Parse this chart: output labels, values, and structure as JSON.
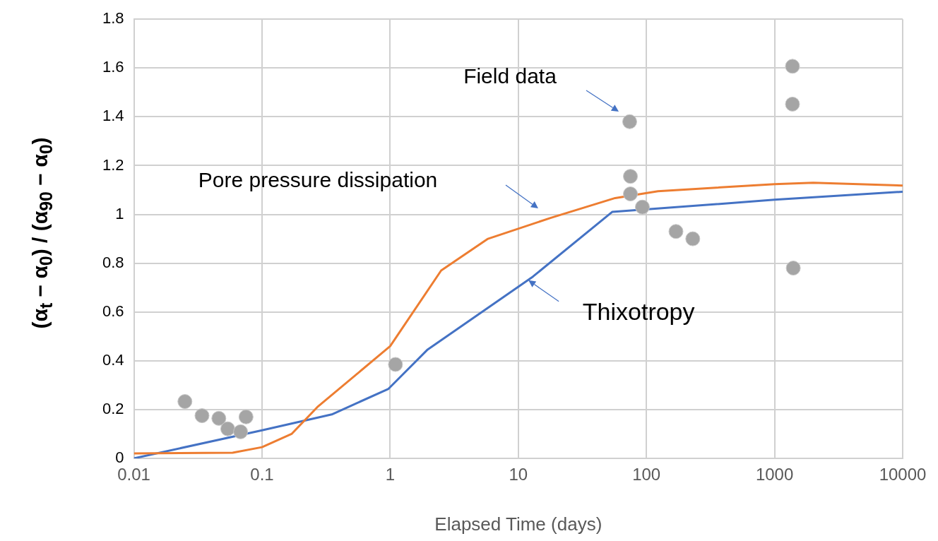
{
  "chart_data": {
    "type": "line",
    "xlabel": "Elapsed Time (days)",
    "ylabel": "(α$_{t}$ − α$_{0}$) / (α$_{90}$ − α$_{0}$)",
    "log": "x",
    "grid": true,
    "legend": false,
    "marker": "none",
    "line_style": "solid",
    "xlim": [
      0.01,
      10000
    ],
    "xticks": [
      0.01,
      0.1,
      1,
      10,
      100,
      1000,
      10000
    ],
    "ylim": [
      0,
      1.8
    ],
    "yticks": [
      0,
      0.2,
      0.4,
      0.6,
      0.8,
      1,
      1.2,
      1.4,
      1.6,
      1.8
    ],
    "series": [
      {
        "color": "#ed7d31",
        "x": [
          0.01,
          0.059,
          0.1,
          0.17,
          0.27,
          1,
          2.5,
          5.8,
          18,
          57,
          123,
          1000,
          2000,
          10000
        ],
        "values": [
          0.02,
          0.023,
          0.046,
          0.1,
          0.21,
          0.46,
          0.77,
          0.9,
          0.986,
          1.067,
          1.095,
          1.124,
          1.13,
          1.118
        ]
      },
      {
        "color": "#4472c4",
        "x": [
          0.01,
          0.1,
          0.35,
          0.97,
          1.96,
          13,
          54,
          1000,
          10000
        ],
        "values": [
          0,
          0.115,
          0.18,
          0.285,
          0.446,
          0.745,
          1.01,
          1.06,
          1.093
        ]
      },
      {
        "type": "scatter",
        "color": "#a5a5a5",
        "marker": "circle",
        "x": [
          0.025,
          0.034,
          0.046,
          0.054,
          0.068,
          0.075,
          1.1,
          74,
          75,
          75,
          93,
          170,
          230,
          1380,
          1380,
          1400
        ],
        "values": [
          0.233,
          0.175,
          0.164,
          0.121,
          0.109,
          0.17,
          0.385,
          1.38,
          1.156,
          1.084,
          1.03,
          0.93,
          0.9,
          1.607,
          1.452,
          0.78
        ]
      }
    ],
    "annotations": [
      "Field data",
      "Pore pressure dissipation",
      {
        "text": "Thixotropy",
        "x": 12,
        "y": 0.73
      }
    ]
  }
}
